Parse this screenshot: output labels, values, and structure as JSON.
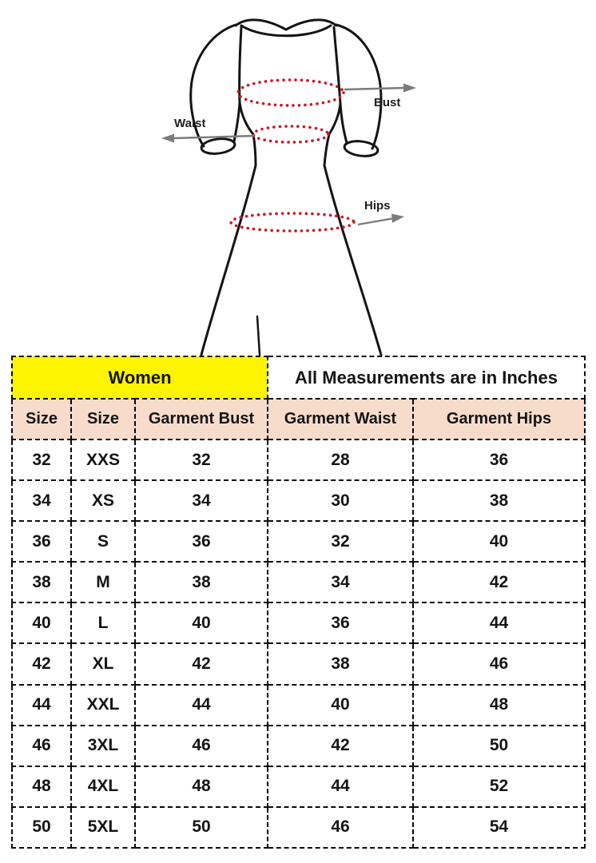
{
  "diagram": {
    "bust_label": "Bust",
    "waist_label": "Waist",
    "hips_label": "Hips",
    "colors": {
      "outline": "#141414",
      "measure_dots": "#c81a28",
      "arrow": "#7b7b7b",
      "label_text": "#1f1f1f"
    }
  },
  "table": {
    "women_header": "Women",
    "measurements_header": "All Measurements are in Inches",
    "columns": [
      "Size",
      "Size",
      "Garment Bust",
      "Garment Waist",
      "Garment Hips"
    ],
    "rows": [
      [
        "32",
        "XXS",
        "32",
        "28",
        "36"
      ],
      [
        "34",
        "XS",
        "34",
        "30",
        "38"
      ],
      [
        "36",
        "S",
        "36",
        "32",
        "40"
      ],
      [
        "38",
        "M",
        "38",
        "34",
        "42"
      ],
      [
        "40",
        "L",
        "40",
        "36",
        "44"
      ],
      [
        "42",
        "XL",
        "42",
        "38",
        "46"
      ],
      [
        "44",
        "XXL",
        "44",
        "40",
        "48"
      ],
      [
        "46",
        "3XL",
        "46",
        "42",
        "50"
      ],
      [
        "48",
        "4XL",
        "48",
        "44",
        "52"
      ],
      [
        "50",
        "5XL",
        "50",
        "46",
        "54"
      ]
    ],
    "colors": {
      "women_bg": "#fdf400",
      "header_bg": "#f8dccb",
      "cell_bg": "#ffffff",
      "border": "#0a0a0a"
    }
  },
  "chart_data": {
    "type": "table",
    "title": "Women - All Measurements are in Inches",
    "columns": [
      "Size",
      "Size",
      "Garment Bust",
      "Garment Waist",
      "Garment Hips"
    ],
    "rows": [
      [
        "32",
        "XXS",
        "32",
        "28",
        "36"
      ],
      [
        "34",
        "XS",
        "34",
        "30",
        "38"
      ],
      [
        "36",
        "S",
        "36",
        "32",
        "40"
      ],
      [
        "38",
        "M",
        "38",
        "34",
        "42"
      ],
      [
        "40",
        "L",
        "40",
        "36",
        "44"
      ],
      [
        "42",
        "XL",
        "42",
        "38",
        "46"
      ],
      [
        "44",
        "XXL",
        "44",
        "40",
        "48"
      ],
      [
        "46",
        "3XL",
        "46",
        "42",
        "50"
      ],
      [
        "48",
        "4XL",
        "48",
        "44",
        "52"
      ],
      [
        "50",
        "5XL",
        "50",
        "46",
        "54"
      ]
    ]
  }
}
